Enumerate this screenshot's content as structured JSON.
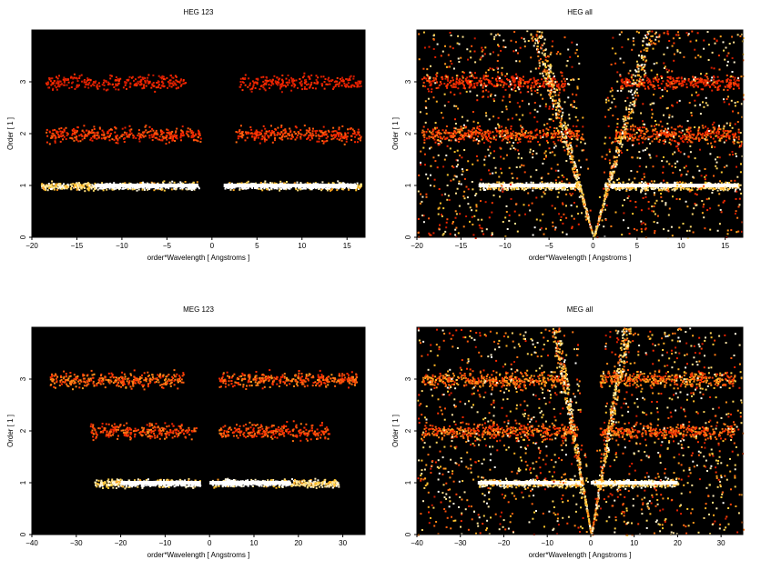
{
  "chart_data": [
    {
      "type": "heatmap",
      "title": "HEG 123",
      "xlabel": "order*Wavelength [ Angstroms ]",
      "ylabel": "Order [ 1 ]",
      "xlim": [
        -20,
        17
      ],
      "ylim": [
        0,
        4
      ],
      "xticks": [
        -20,
        -15,
        -10,
        -5,
        0,
        5,
        10,
        15
      ],
      "yticks": [
        0,
        1,
        2,
        3
      ],
      "colormap": "black-red-yellow-white (heat)",
      "background": "#000000",
      "bands": [
        {
          "order": 1,
          "x_range": [
            -19,
            -1.5
          ],
          "x_range2": [
            1.3,
            16.5
          ],
          "bright_range": [
            -13,
            16
          ],
          "intensity": 1.0
        },
        {
          "order": 2,
          "x_range": [
            -18.5,
            -1.3
          ],
          "x_range2": [
            2.5,
            16.5
          ],
          "intensity": 0.45
        },
        {
          "order": 3,
          "x_range": [
            -18.5,
            -3
          ],
          "x_range2": [
            3,
            16.5
          ],
          "intensity": 0.35
        }
      ],
      "diagonal_streaks": false
    },
    {
      "type": "heatmap",
      "title": "HEG all",
      "xlabel": "order*Wavelength [ Angstroms ]",
      "ylabel": "Order [ 1 ]",
      "xlim": [
        -20,
        17
      ],
      "ylim": [
        0,
        4
      ],
      "xticks": [
        -20,
        -15,
        -10,
        -5,
        0,
        5,
        10,
        15
      ],
      "yticks": [
        0,
        1,
        2,
        3
      ],
      "colormap": "black-red-yellow-white (heat)",
      "background": "#000000",
      "bands": [
        {
          "order": 1,
          "x_range": [
            -13,
            -1.5
          ],
          "x_range2": [
            1.3,
            16.5
          ],
          "intensity": 1.0
        },
        {
          "order": 2,
          "x_range": [
            -19.5,
            -1.3
          ],
          "x_range2": [
            2.5,
            16.5
          ],
          "intensity": 0.5
        },
        {
          "order": 3,
          "x_range": [
            -19.5,
            -3
          ],
          "x_range2": [
            3,
            16.5
          ],
          "intensity": 0.4
        }
      ],
      "diagonal_streaks": true,
      "streak_slope": 1.6
    },
    {
      "type": "heatmap",
      "title": "MEG 123",
      "xlabel": "order*Wavelength [ Angstroms ]",
      "ylabel": "Order [ 1 ]",
      "xlim": [
        -40,
        35
      ],
      "ylim": [
        0,
        4
      ],
      "xticks": [
        -40,
        -30,
        -20,
        -10,
        0,
        10,
        20,
        30
      ],
      "yticks": [
        0,
        1,
        2,
        3
      ],
      "colormap": "black-red-yellow-white (heat)",
      "background": "#000000",
      "bands": [
        {
          "order": 1,
          "x_range": [
            -26,
            -2
          ],
          "x_range2": [
            0,
            29
          ],
          "bright_range": [
            -20,
            18
          ],
          "intensity": 1.0
        },
        {
          "order": 2,
          "x_range": [
            -27,
            -3
          ],
          "x_range2": [
            2,
            27
          ],
          "intensity": 0.5
        },
        {
          "order": 3,
          "x_range": [
            -36,
            -6
          ],
          "x_range2": [
            2,
            33
          ],
          "intensity": 0.55
        }
      ],
      "diagonal_streaks": false
    },
    {
      "type": "heatmap",
      "title": "MEG all",
      "xlabel": "order*Wavelength [ Angstroms ]",
      "ylabel": "Order [ 1 ]",
      "xlim": [
        -40,
        35
      ],
      "ylim": [
        0,
        4
      ],
      "xticks": [
        -40,
        -30,
        -20,
        -10,
        0,
        10,
        20,
        30
      ],
      "yticks": [
        0,
        1,
        2,
        3
      ],
      "colormap": "black-red-yellow-white (heat)",
      "background": "#000000",
      "bands": [
        {
          "order": 1,
          "x_range": [
            -26,
            -2
          ],
          "x_range2": [
            0,
            20
          ],
          "intensity": 1.0
        },
        {
          "order": 2,
          "x_range": [
            -39,
            -3
          ],
          "x_range2": [
            2,
            33
          ],
          "intensity": 0.55
        },
        {
          "order": 3,
          "x_range": [
            -39,
            -6
          ],
          "x_range2": [
            2,
            33
          ],
          "intensity": 0.6
        }
      ],
      "diagonal_streaks": true,
      "streak_slope": 1.0
    }
  ]
}
